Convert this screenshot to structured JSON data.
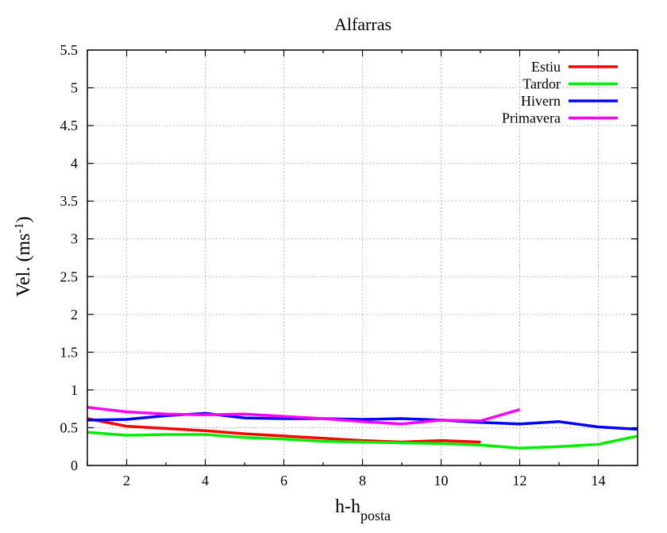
{
  "chart_data": {
    "type": "line",
    "title": "Alfarras",
    "ylabel_main": "Vel. (ms",
    "ylabel_sup": "-1",
    "ylabel_close": ")",
    "xlabel_main": "h-h",
    "xlabel_sub": "posta",
    "xlim": [
      1,
      15
    ],
    "ylim": [
      0,
      5.5
    ],
    "xticks": [
      2,
      4,
      6,
      8,
      10,
      12,
      14
    ],
    "xtick_labels": [
      "2",
      "4",
      "6",
      "8",
      "10",
      "12",
      "14"
    ],
    "yticks": [
      0,
      0.5,
      1,
      1.5,
      2,
      2.5,
      3,
      3.5,
      4,
      4.5,
      5,
      5.5
    ],
    "ytick_labels": [
      "0",
      "0.5",
      "1",
      "1.5",
      "2",
      "2.5",
      "3",
      "3.5",
      "4",
      "4.5",
      "5",
      "5.5"
    ],
    "grid": true,
    "legend_position": "top-right",
    "series": [
      {
        "name": "Estiu",
        "color": "#ff0000",
        "x": [
          1,
          2,
          3,
          4,
          5,
          6,
          7,
          8,
          9,
          10,
          11
        ],
        "y": [
          0.62,
          0.52,
          0.49,
          0.46,
          0.42,
          0.39,
          0.36,
          0.33,
          0.31,
          0.33,
          0.31
        ]
      },
      {
        "name": "Tardor",
        "color": "#00ee00",
        "x": [
          1,
          2,
          3,
          4,
          5,
          6,
          7,
          8,
          9,
          10,
          11,
          12,
          13,
          14,
          15
        ],
        "y": [
          0.44,
          0.4,
          0.41,
          0.41,
          0.37,
          0.35,
          0.32,
          0.31,
          0.3,
          0.29,
          0.27,
          0.23,
          0.25,
          0.28,
          0.39
        ]
      },
      {
        "name": "Hivern",
        "color": "#0000ff",
        "x": [
          1,
          2,
          3,
          4,
          5,
          6,
          7,
          8,
          9,
          10,
          11,
          12,
          13,
          14,
          15
        ],
        "y": [
          0.6,
          0.61,
          0.66,
          0.69,
          0.63,
          0.62,
          0.62,
          0.61,
          0.62,
          0.6,
          0.57,
          0.55,
          0.58,
          0.51,
          0.48
        ]
      },
      {
        "name": "Primavera",
        "color": "#ff00ff",
        "x": [
          1,
          2,
          3,
          4,
          5,
          6,
          7,
          8,
          9,
          10,
          11,
          12
        ],
        "y": [
          0.77,
          0.71,
          0.68,
          0.67,
          0.68,
          0.65,
          0.62,
          0.58,
          0.55,
          0.6,
          0.59,
          0.74
        ]
      }
    ]
  }
}
